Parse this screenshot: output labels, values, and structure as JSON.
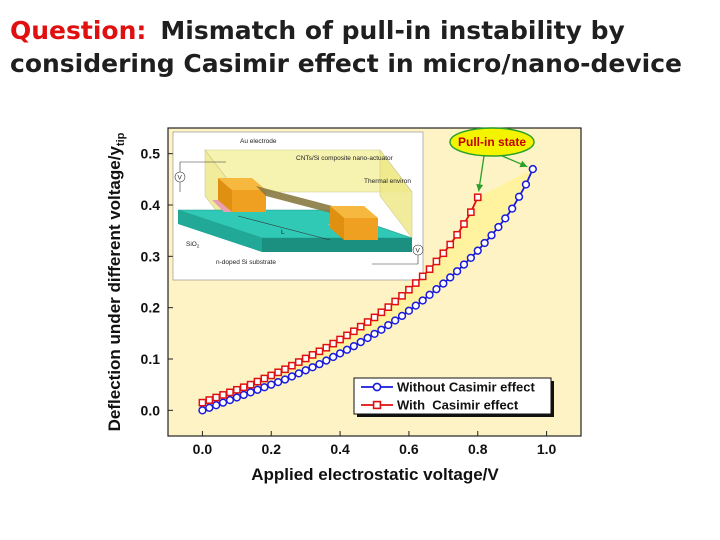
{
  "slide": {
    "question_label": "Question:",
    "title_line1": "Mismatch of pull-in instability by",
    "title_line2": "considering Casimir effect in micro/nano-device"
  },
  "chart_data": {
    "type": "line",
    "title": "",
    "xlabel": "Applied electrostatic voltage/V",
    "ylabel": "Deflection under different voltage/y",
    "ylabel_subscript": "tip",
    "xlim": [
      -0.1,
      1.1
    ],
    "ylim": [
      -0.05,
      0.55
    ],
    "xticks": [
      "0.0",
      "0.2",
      "0.4",
      "0.6",
      "0.8",
      "1.0"
    ],
    "yticks": [
      "0.0",
      "0.1",
      "0.2",
      "0.3",
      "0.4",
      "0.5"
    ],
    "grid": false,
    "legend_position": "bottom-right",
    "series": [
      {
        "name": "Without Casimir effect",
        "color": "#1a1adc",
        "marker": "circle",
        "x": [
          0.0,
          0.02,
          0.04,
          0.06,
          0.08,
          0.1,
          0.12,
          0.14,
          0.16,
          0.18,
          0.2,
          0.22,
          0.24,
          0.26,
          0.28,
          0.3,
          0.32,
          0.34,
          0.36,
          0.38,
          0.4,
          0.42,
          0.44,
          0.46,
          0.48,
          0.5,
          0.52,
          0.54,
          0.56,
          0.58,
          0.6,
          0.62,
          0.64,
          0.66,
          0.68,
          0.7,
          0.72,
          0.74,
          0.76,
          0.78,
          0.8,
          0.82,
          0.84,
          0.86,
          0.88,
          0.9,
          0.92,
          0.94,
          0.96
        ],
        "y": [
          0.0,
          0.005,
          0.01,
          0.015,
          0.02,
          0.025,
          0.03,
          0.035,
          0.04,
          0.045,
          0.05,
          0.055,
          0.06,
          0.066,
          0.072,
          0.078,
          0.084,
          0.09,
          0.097,
          0.104,
          0.111,
          0.118,
          0.125,
          0.133,
          0.141,
          0.149,
          0.157,
          0.166,
          0.175,
          0.184,
          0.194,
          0.204,
          0.214,
          0.225,
          0.236,
          0.247,
          0.259,
          0.271,
          0.284,
          0.297,
          0.311,
          0.326,
          0.341,
          0.357,
          0.374,
          0.393,
          0.416,
          0.44,
          0.47
        ]
      },
      {
        "name": "With  Casimir effect",
        "color": "#e01010",
        "marker": "square",
        "x": [
          0.0,
          0.02,
          0.04,
          0.06,
          0.08,
          0.1,
          0.12,
          0.14,
          0.16,
          0.18,
          0.2,
          0.22,
          0.24,
          0.26,
          0.28,
          0.3,
          0.32,
          0.34,
          0.36,
          0.38,
          0.4,
          0.42,
          0.44,
          0.46,
          0.48,
          0.5,
          0.52,
          0.54,
          0.56,
          0.58,
          0.6,
          0.62,
          0.64,
          0.66,
          0.68,
          0.7,
          0.72,
          0.74,
          0.76,
          0.78,
          0.8
        ],
        "y": [
          0.015,
          0.02,
          0.025,
          0.03,
          0.035,
          0.04,
          0.045,
          0.05,
          0.056,
          0.062,
          0.068,
          0.074,
          0.08,
          0.087,
          0.094,
          0.101,
          0.108,
          0.115,
          0.122,
          0.13,
          0.138,
          0.146,
          0.154,
          0.163,
          0.172,
          0.181,
          0.191,
          0.201,
          0.212,
          0.223,
          0.235,
          0.248,
          0.261,
          0.275,
          0.29,
          0.306,
          0.323,
          0.342,
          0.363,
          0.386,
          0.415
        ]
      }
    ],
    "annotations": [
      {
        "text": "Pull-in state",
        "points_to": [
          [
            0.8,
            0.415
          ],
          [
            0.96,
            0.47
          ]
        ]
      }
    ]
  },
  "inset": {
    "labels": {
      "electrode": "Au electrode",
      "actuator": "CNTs/Si composite nano-actuator",
      "environment": "Thermal environ",
      "oxide": "SiO",
      "oxide_sub": "2",
      "substrate": "n-doped Si substrate",
      "length": "L",
      "source_left": "V",
      "source_right": "V"
    },
    "colors": {
      "box": "#f6f2a8",
      "substrate": "#2fc9b6",
      "oxide": "#e8a0b0",
      "electrode": "#f0a020",
      "beam": "#8a7a40"
    }
  },
  "colors": {
    "plot_fill": "#fdf3c4",
    "callout_fill": "#f4f400",
    "callout_stroke": "#2aa02a",
    "arrow": "#2aa02a",
    "band_fill": "#fff3a0"
  }
}
